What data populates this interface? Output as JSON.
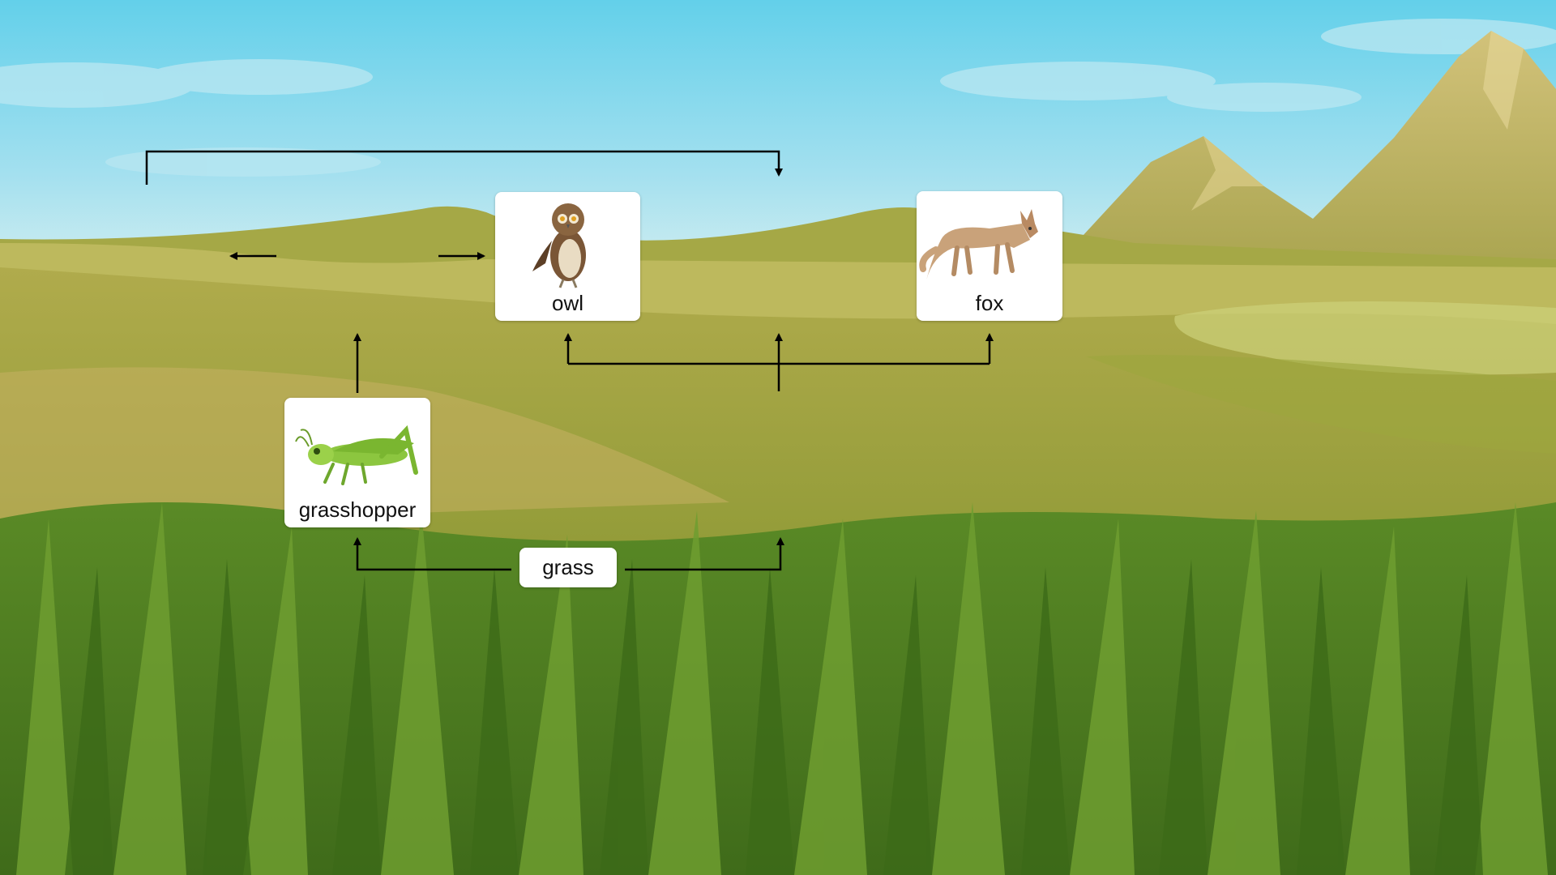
{
  "diagram": {
    "type": "food web",
    "organisms": {
      "owl": "owl",
      "fox": "fox",
      "grasshopper": "grasshopper",
      "grass": "grass"
    },
    "icons": {
      "owl": "owl-illustration",
      "fox": "fox-illustration",
      "grasshopper": "grasshopper-illustration"
    },
    "edges": [
      {
        "from": "grass",
        "to": "grasshopper"
      },
      {
        "from": "grass",
        "to": "right-branch"
      },
      {
        "from": "grasshopper",
        "to": "owl"
      },
      {
        "from": "owl",
        "to": "left-branch"
      },
      {
        "from": "left-branch",
        "to": "right-branch"
      }
    ],
    "background": "grassland with hills and mountains"
  },
  "colors": {
    "sky_top": "#6dd3ea",
    "sky_bottom": "#c8ecf2",
    "grass_dark": "#4f7d22",
    "hills": "#b8ad58",
    "arrow": "#000000",
    "card": "#ffffff"
  }
}
